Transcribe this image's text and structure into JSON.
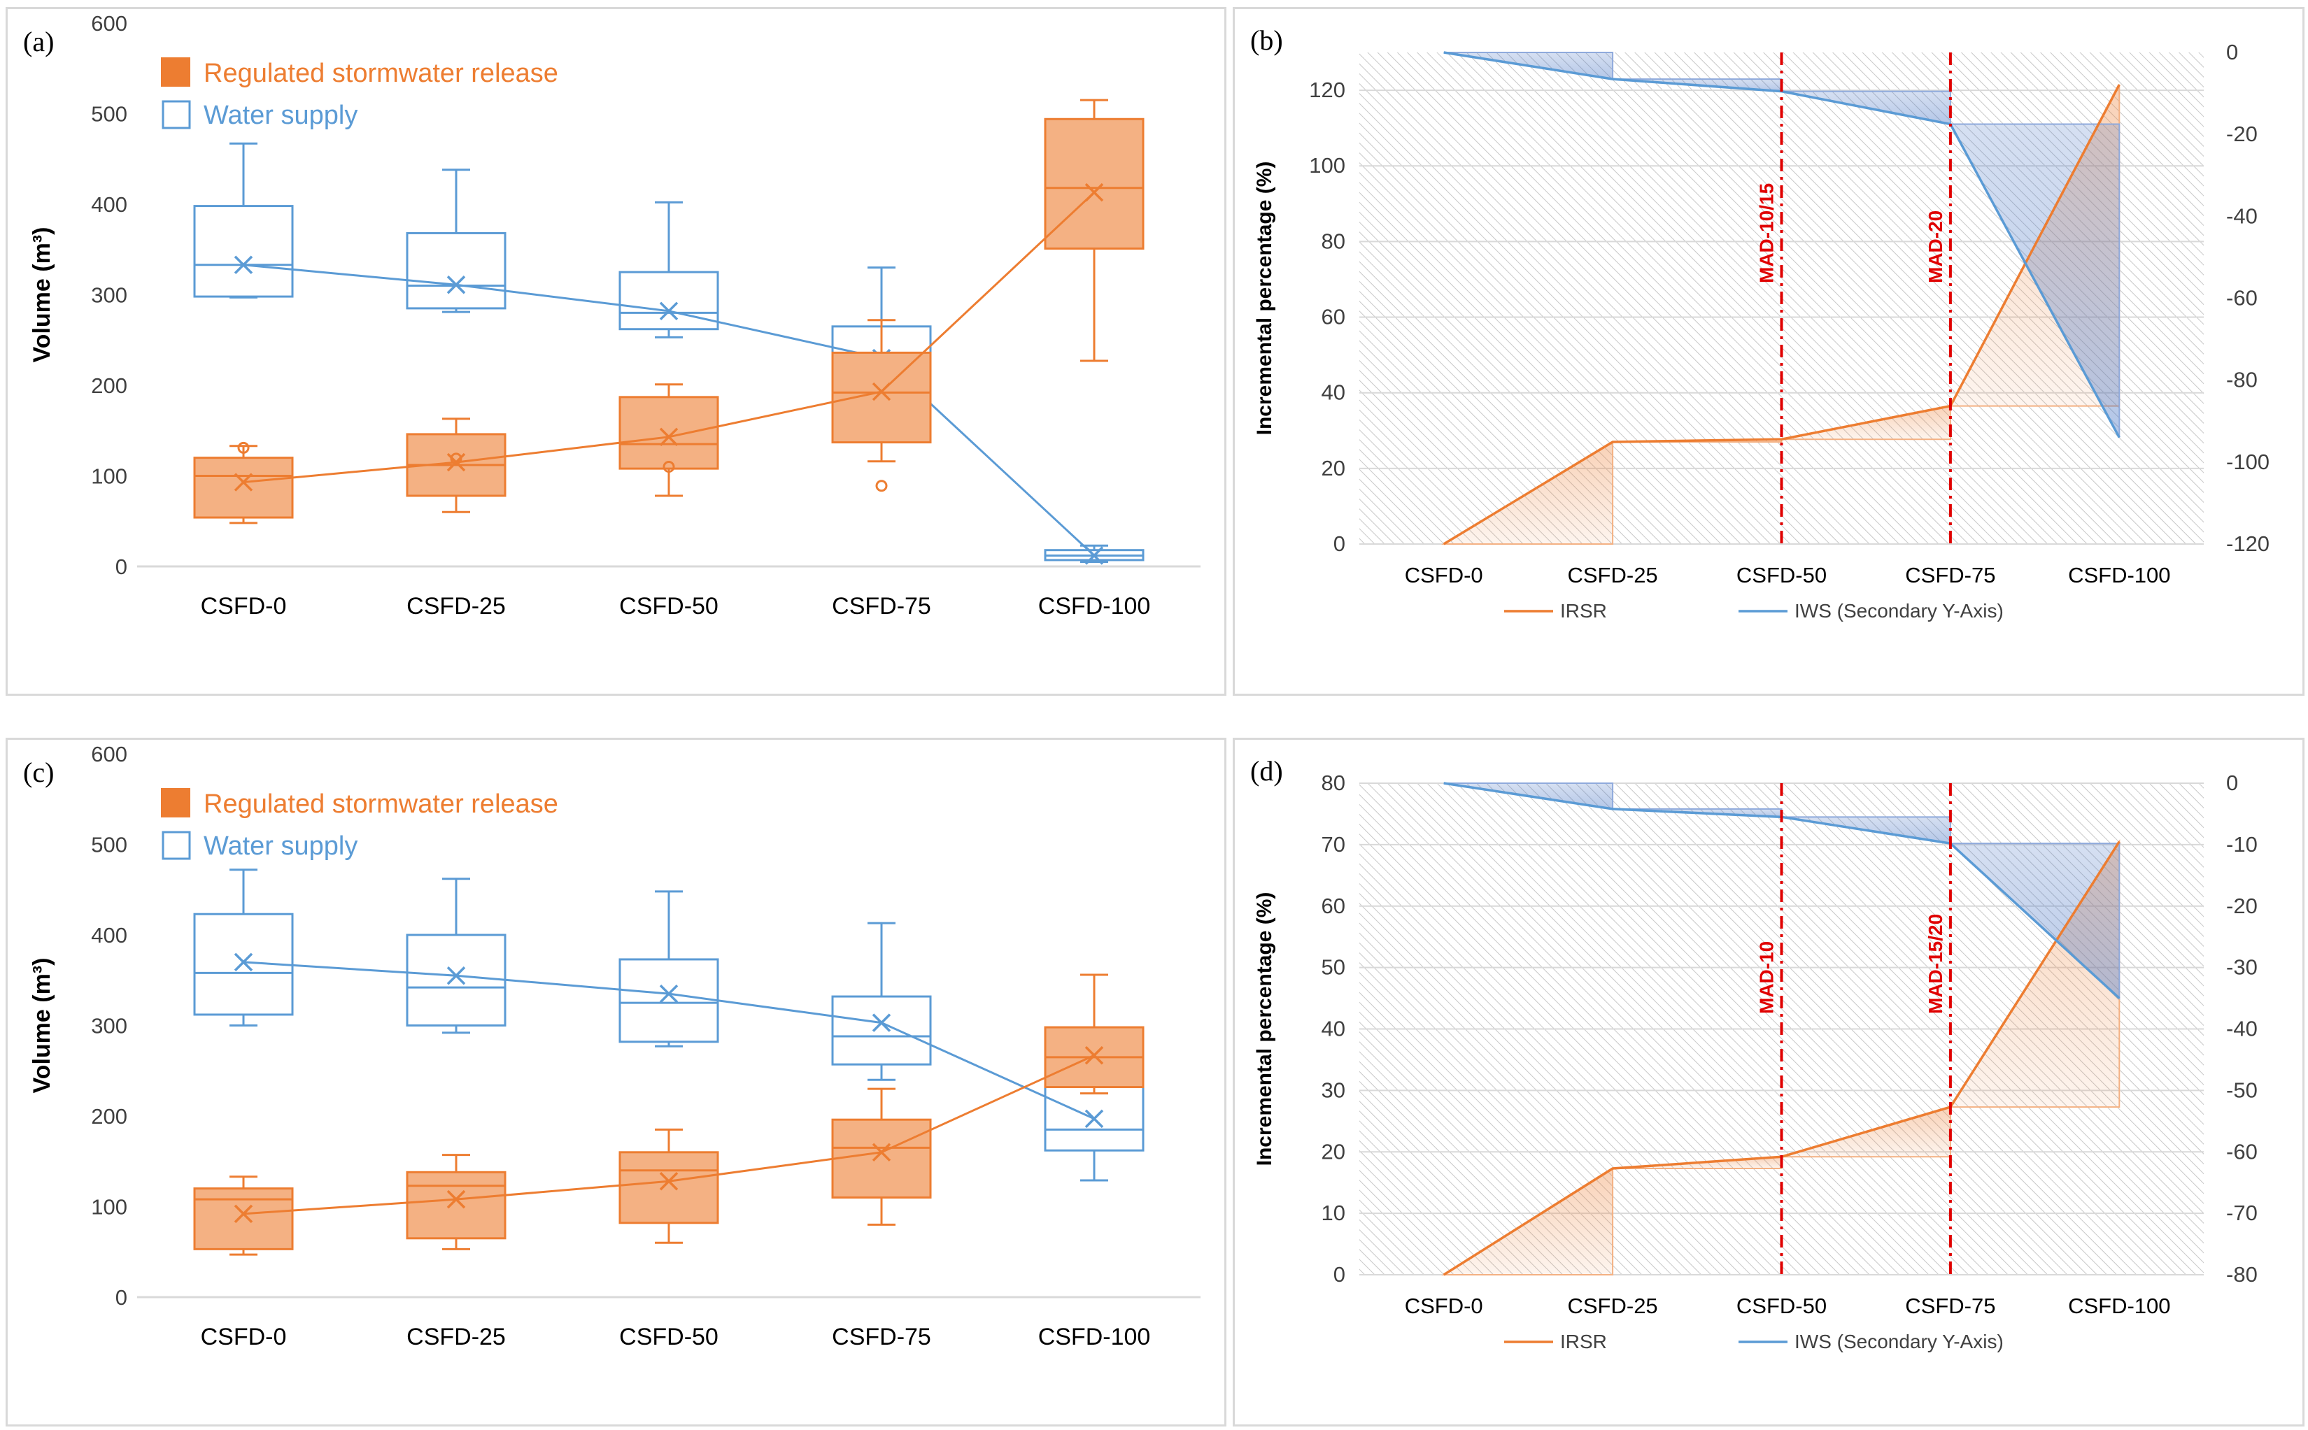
{
  "chart_data": [
    {
      "id": "a",
      "type": "box",
      "panel_label": "(a)",
      "ylabel": "Volume (m³)",
      "ylim": [
        0,
        600
      ],
      "yticks": [
        0,
        100,
        200,
        300,
        400,
        500,
        600
      ],
      "categories": [
        "CSFD-0",
        "CSFD-25",
        "CSFD-50",
        "CSFD-75",
        "CSFD-100"
      ],
      "legend": [
        "Regulated stormwater release",
        "Water supply"
      ],
      "colors": {
        "release": "#ed7d31",
        "release_fill": "#f4b183",
        "supply": "#5b9bd5"
      },
      "series": [
        {
          "name": "Water supply",
          "kind": "outline",
          "boxes": [
            {
              "min": 297,
              "q1": 298,
              "median": 333,
              "q3": 398,
              "max": 467,
              "mean": 333,
              "outliers": []
            },
            {
              "min": 281,
              "q1": 285,
              "median": 310,
              "q3": 368,
              "max": 438,
              "mean": 311,
              "outliers": []
            },
            {
              "min": 253,
              "q1": 262,
              "median": 280,
              "q3": 325,
              "max": 402,
              "mean": 282,
              "outliers": []
            },
            {
              "min": 213,
              "q1": 218,
              "median": 225,
              "q3": 265,
              "max": 330,
              "mean": 230,
              "outliers": []
            },
            {
              "min": 5,
              "q1": 7,
              "median": 12,
              "q3": 18,
              "max": 23,
              "mean": 12,
              "outliers": []
            }
          ]
        },
        {
          "name": "Regulated stormwater release",
          "kind": "filled",
          "boxes": [
            {
              "min": 48,
              "q1": 54,
              "median": 100,
              "q3": 120,
              "max": 133,
              "mean": 93,
              "outliers": [
                131
              ]
            },
            {
              "min": 60,
              "q1": 78,
              "median": 112,
              "q3": 146,
              "max": 163,
              "mean": 115,
              "outliers": [
                119
              ]
            },
            {
              "min": 78,
              "q1": 108,
              "median": 135,
              "q3": 187,
              "max": 201,
              "mean": 143,
              "outliers": [
                110
              ]
            },
            {
              "min": 116,
              "q1": 137,
              "median": 192,
              "q3": 236,
              "max": 272,
              "mean": 193,
              "outliers": [
                89
              ]
            },
            {
              "min": 227,
              "q1": 351,
              "median": 418,
              "q3": 494,
              "max": 515,
              "mean": 413,
              "outliers": []
            }
          ]
        }
      ]
    },
    {
      "id": "b",
      "type": "line",
      "panel_label": "(b)",
      "ylabel": "Incremental percentage (%)",
      "ylim": [
        0,
        130
      ],
      "yticks": [
        0,
        20,
        40,
        60,
        80,
        100,
        120
      ],
      "y2lim": [
        -120,
        0
      ],
      "y2ticks": [
        0,
        -20,
        -40,
        -60,
        -80,
        -100,
        -120
      ],
      "categories": [
        "CSFD-0",
        "CSFD-25",
        "CSFD-50",
        "CSFD-75",
        "CSFD-100"
      ],
      "series": [
        {
          "name": "IRSR",
          "axis": "primary",
          "values": [
            0,
            27,
            27.7,
            36.5,
            121.5
          ]
        },
        {
          "name": "IWS (Secondary Y-Axis)",
          "axis": "secondary",
          "values": [
            0,
            -6.5,
            -9.5,
            -17.5,
            -94
          ]
        }
      ],
      "markers": [
        {
          "label": "MAD-10/15",
          "category_index": 2
        },
        {
          "label": "MAD-20",
          "category_index": 3
        }
      ]
    },
    {
      "id": "c",
      "type": "box",
      "panel_label": "(c)",
      "ylabel": "Volume (m³)",
      "ylim": [
        0,
        600
      ],
      "yticks": [
        0,
        100,
        200,
        300,
        400,
        500,
        600
      ],
      "categories": [
        "CSFD-0",
        "CSFD-25",
        "CSFD-50",
        "CSFD-75",
        "CSFD-100"
      ],
      "legend": [
        "Regulated stormwater release",
        "Water supply"
      ],
      "colors": {
        "release": "#ed7d31",
        "release_fill": "#f4b183",
        "supply": "#5b9bd5"
      },
      "series": [
        {
          "name": "Water supply",
          "kind": "outline",
          "boxes": [
            {
              "min": 300,
              "q1": 312,
              "median": 358,
              "q3": 423,
              "max": 472,
              "mean": 370,
              "outliers": []
            },
            {
              "min": 292,
              "q1": 300,
              "median": 342,
              "q3": 400,
              "max": 462,
              "mean": 355,
              "outliers": []
            },
            {
              "min": 277,
              "q1": 282,
              "median": 325,
              "q3": 373,
              "max": 448,
              "mean": 335,
              "outliers": []
            },
            {
              "min": 240,
              "q1": 257,
              "median": 288,
              "q3": 332,
              "max": 413,
              "mean": 303,
              "outliers": []
            },
            {
              "min": 129,
              "q1": 162,
              "median": 185,
              "q3": 237,
              "max": 293,
              "mean": 197,
              "outliers": []
            }
          ]
        },
        {
          "name": "Regulated stormwater release",
          "kind": "filled",
          "boxes": [
            {
              "min": 47,
              "q1": 53,
              "median": 108,
              "q3": 120,
              "max": 133,
              "mean": 92,
              "outliers": []
            },
            {
              "min": 53,
              "q1": 65,
              "median": 123,
              "q3": 138,
              "max": 157,
              "mean": 108,
              "outliers": []
            },
            {
              "min": 60,
              "q1": 82,
              "median": 140,
              "q3": 160,
              "max": 185,
              "mean": 128,
              "outliers": []
            },
            {
              "min": 80,
              "q1": 110,
              "median": 165,
              "q3": 196,
              "max": 230,
              "mean": 160,
              "outliers": []
            },
            {
              "min": 225,
              "q1": 232,
              "median": 265,
              "q3": 298,
              "max": 356,
              "mean": 267,
              "outliers": []
            }
          ]
        }
      ]
    },
    {
      "id": "d",
      "type": "line",
      "panel_label": "(d)",
      "ylabel": "Incremental percentage (%)",
      "ylim": [
        0,
        80
      ],
      "yticks": [
        0,
        10,
        20,
        30,
        40,
        50,
        60,
        70,
        80
      ],
      "y2lim": [
        -80,
        0
      ],
      "y2ticks": [
        0,
        -10,
        -20,
        -30,
        -40,
        -50,
        -60,
        -70,
        -80
      ],
      "categories": [
        "CSFD-0",
        "CSFD-25",
        "CSFD-50",
        "CSFD-75",
        "CSFD-100"
      ],
      "series": [
        {
          "name": "IRSR",
          "axis": "primary",
          "values": [
            0,
            17.3,
            19.2,
            27.3,
            70.5
          ]
        },
        {
          "name": "IWS (Secondary Y-Axis)",
          "axis": "secondary",
          "values": [
            0,
            -4.2,
            -5.5,
            -9.8,
            -35
          ]
        }
      ],
      "markers": [
        {
          "label": "MAD-10",
          "category_index": 2
        },
        {
          "label": "MAD-15/20",
          "category_index": 3
        }
      ]
    }
  ]
}
